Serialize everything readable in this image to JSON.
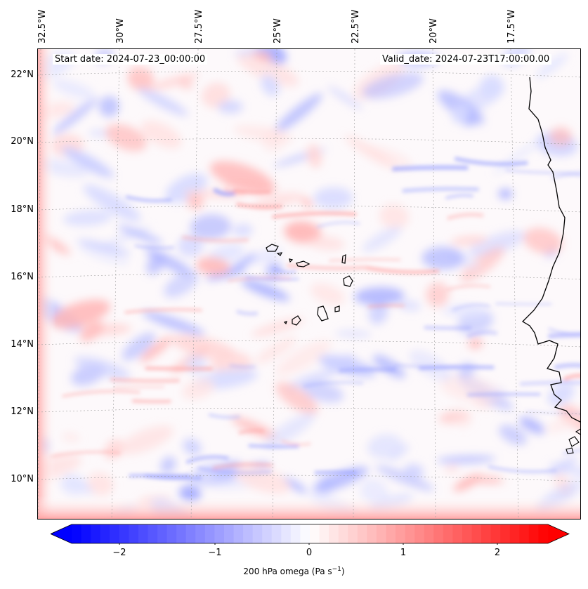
{
  "map": {
    "start_date": "Start date: 2024-07-23_00:00:00",
    "valid_date": "Valid_date: 2024-07-23T17:00:00.00",
    "lon_labels": [
      "32.5°W",
      "30°W",
      "27.5°W",
      "25°W",
      "22.5°W",
      "20°W",
      "17.5°W"
    ],
    "lat_labels": [
      "22°N",
      "20°N",
      "18°N",
      "16°N",
      "14°N",
      "12°N",
      "10°N"
    ]
  },
  "colorbar": {
    "ticks": [
      "−2",
      "−1",
      "0",
      "1",
      "2"
    ],
    "label_prefix": "200 hPa omega (Pa s",
    "label_exp": "−1",
    "label_suffix": ")",
    "min_color": "#0000ff",
    "mid_color": "#ffffff",
    "max_color": "#ff0000"
  }
}
